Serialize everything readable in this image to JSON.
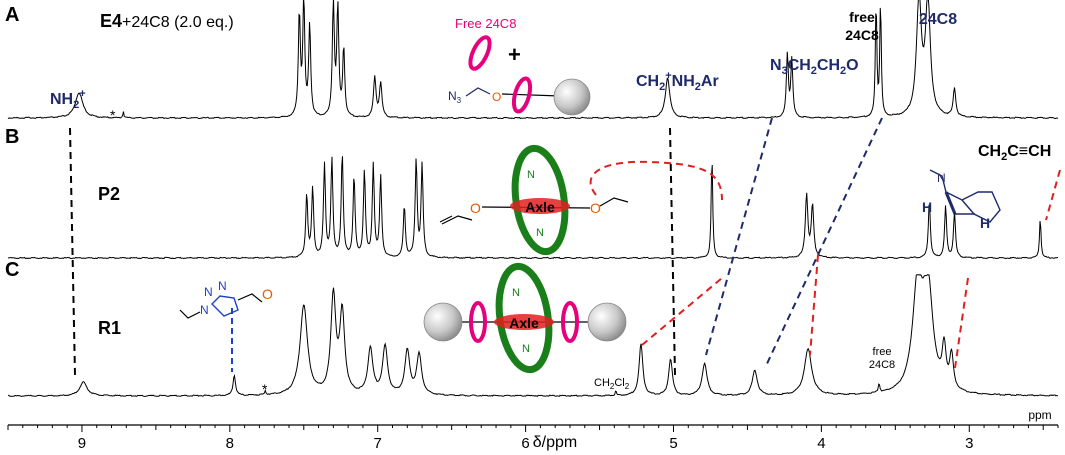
{
  "chart_data": {
    "type": "line",
    "x_unit": "ppm",
    "xlabel": "δ/ppm",
    "x_unit_label": "ppm",
    "xlim": [
      9.5,
      2.4
    ],
    "x_reversed": true,
    "x_ticks": [
      9,
      8,
      7,
      6,
      5,
      4,
      3
    ],
    "grid": false,
    "panels": [
      {
        "letter": "A",
        "label": "E4",
        "label_suffix": "+24C8 (2.0 eq.)",
        "peaks": [
          {
            "ppm": 9.02,
            "height": 0.22,
            "width": 0.03
          },
          {
            "ppm": 8.72,
            "height": 0.06,
            "width": 0.004
          },
          {
            "ppm": 7.53,
            "height": 0.9,
            "width": 0.008
          },
          {
            "ppm": 7.5,
            "height": 1.0,
            "width": 0.008
          },
          {
            "ppm": 7.46,
            "height": 0.8,
            "width": 0.008
          },
          {
            "ppm": 7.3,
            "height": 1.0,
            "width": 0.008
          },
          {
            "ppm": 7.27,
            "height": 0.95,
            "width": 0.008
          },
          {
            "ppm": 7.23,
            "height": 0.6,
            "width": 0.008
          },
          {
            "ppm": 7.02,
            "height": 0.35,
            "width": 0.01
          },
          {
            "ppm": 6.98,
            "height": 0.3,
            "width": 0.01
          },
          {
            "ppm": 5.04,
            "height": 0.35,
            "width": 0.018
          },
          {
            "ppm": 4.23,
            "height": 0.55,
            "width": 0.008
          },
          {
            "ppm": 4.2,
            "height": 0.5,
            "width": 0.008
          },
          {
            "ppm": 3.63,
            "height": 1.0,
            "width": 0.006
          },
          {
            "ppm": 3.6,
            "height": 1.0,
            "width": 0.006
          },
          {
            "ppm": 3.34,
            "height": 1.0,
            "width": 0.02
          },
          {
            "ppm": 3.28,
            "height": 1.0,
            "width": 0.02
          },
          {
            "ppm": 3.1,
            "height": 0.25,
            "width": 0.01
          }
        ]
      },
      {
        "letter": "B",
        "label": "P2",
        "label_suffix": "",
        "peaks": [
          {
            "ppm": 7.48,
            "height": 0.55,
            "width": 0.008
          },
          {
            "ppm": 7.44,
            "height": 0.6,
            "width": 0.008
          },
          {
            "ppm": 7.36,
            "height": 0.8,
            "width": 0.008
          },
          {
            "ppm": 7.31,
            "height": 0.85,
            "width": 0.008
          },
          {
            "ppm": 7.24,
            "height": 0.9,
            "width": 0.008
          },
          {
            "ppm": 7.16,
            "height": 0.7,
            "width": 0.008
          },
          {
            "ppm": 7.09,
            "height": 0.75,
            "width": 0.008
          },
          {
            "ppm": 7.03,
            "height": 0.8,
            "width": 0.008
          },
          {
            "ppm": 6.98,
            "height": 0.7,
            "width": 0.008
          },
          {
            "ppm": 6.82,
            "height": 0.45,
            "width": 0.008
          },
          {
            "ppm": 6.74,
            "height": 0.85,
            "width": 0.008
          },
          {
            "ppm": 6.7,
            "height": 0.8,
            "width": 0.008
          },
          {
            "ppm": 4.74,
            "height": 0.9,
            "width": 0.006
          },
          {
            "ppm": 4.1,
            "height": 0.55,
            "width": 0.01
          },
          {
            "ppm": 4.06,
            "height": 0.45,
            "width": 0.01
          },
          {
            "ppm": 3.27,
            "height": 0.5,
            "width": 0.008
          },
          {
            "ppm": 3.16,
            "height": 0.45,
            "width": 0.008
          },
          {
            "ppm": 3.1,
            "height": 0.4,
            "width": 0.008
          },
          {
            "ppm": 2.52,
            "height": 0.35,
            "width": 0.006
          }
        ]
      },
      {
        "letter": "C",
        "label": "R1",
        "label_suffix": "",
        "peaks": [
          {
            "ppm": 8.99,
            "height": 0.12,
            "width": 0.03
          },
          {
            "ppm": 7.97,
            "height": 0.18,
            "width": 0.01
          },
          {
            "ppm": 7.76,
            "height": 0.04,
            "width": 0.004
          },
          {
            "ppm": 7.5,
            "height": 0.78,
            "width": 0.03
          },
          {
            "ppm": 7.3,
            "height": 0.85,
            "width": 0.02
          },
          {
            "ppm": 7.24,
            "height": 0.7,
            "width": 0.02
          },
          {
            "ppm": 7.05,
            "height": 0.4,
            "width": 0.02
          },
          {
            "ppm": 6.95,
            "height": 0.42,
            "width": 0.02
          },
          {
            "ppm": 6.8,
            "height": 0.38,
            "width": 0.02
          },
          {
            "ppm": 6.72,
            "height": 0.35,
            "width": 0.02
          },
          {
            "ppm": 5.22,
            "height": 0.45,
            "width": 0.015
          },
          {
            "ppm": 5.02,
            "height": 0.32,
            "width": 0.015
          },
          {
            "ppm": 4.79,
            "height": 0.28,
            "width": 0.02
          },
          {
            "ppm": 4.45,
            "height": 0.22,
            "width": 0.02
          },
          {
            "ppm": 4.09,
            "height": 0.4,
            "width": 0.03
          },
          {
            "ppm": 3.61,
            "height": 0.08,
            "width": 0.006
          },
          {
            "ppm": 3.35,
            "height": 0.9,
            "width": 0.04
          },
          {
            "ppm": 3.28,
            "height": 0.9,
            "width": 0.04
          },
          {
            "ppm": 3.17,
            "height": 0.35,
            "width": 0.015
          },
          {
            "ppm": 3.12,
            "height": 0.3,
            "width": 0.015
          },
          {
            "ppm": 5.39,
            "height": 0.05,
            "width": 0.004
          }
        ]
      }
    ],
    "annotations": [
      {
        "text": "NH2+",
        "panel": "A"
      },
      {
        "text": "*",
        "panel": "A"
      },
      {
        "text": "CH2+NH2Ar",
        "panel": "A"
      },
      {
        "text": "N3CH2CH2O",
        "panel": "A"
      },
      {
        "text": "free 24C8",
        "panel": "A"
      },
      {
        "text": "24C8",
        "panel": "A"
      },
      {
        "text": "CH2C≡CH",
        "panel": "B"
      },
      {
        "text": "CH2Cl2",
        "panel": "C"
      },
      {
        "text": "free 24C8",
        "panel": "C"
      },
      {
        "text": "*",
        "panel": "C"
      }
    ]
  },
  "labels": {
    "panel_a": "A",
    "panel_b": "B",
    "panel_c": "C",
    "sample_a_bold": "E4",
    "sample_a_rest": "+24C8 (2.0 eq.)",
    "sample_b": "P2",
    "sample_c": "R1",
    "nh2_main": "NH",
    "nh2_sub": "2",
    "nh2_sup": "+",
    "star_a": "*",
    "star_c": "*",
    "ch2nh2_a": "CH",
    "ch2nh2_sub1": "2",
    "ch2nh2_sup": "+",
    "ch2nh2_b": "NH",
    "ch2nh2_sub2": "2",
    "ch2nh2_c": "Ar",
    "n3_a": "N",
    "n3_sub": "3",
    "n3_b": "CH",
    "n3_sub2": "2",
    "n3_c": "CH",
    "n3_sub3": "2",
    "n3_d": "O",
    "free_line1": "free",
    "free_line2": "24C8",
    "crown_label": "24C8",
    "propargyl_a": "CH",
    "propargyl_sub": "2",
    "propargyl_b": "C",
    "propargyl_triple": "≡",
    "propargyl_c": "CH",
    "ch2cl2_a": "CH",
    "ch2cl2_sub1": "2",
    "ch2cl2_b": "Cl",
    "ch2cl2_sub2": "2",
    "free_c_line1": "free",
    "free_c_line2": "24C8",
    "free_24c8_cartoon": "Free 24C8",
    "plus_sign": "+",
    "axle_b": "Axle",
    "axle_c": "Axle",
    "n3_cartoon": "N",
    "n3_cartoon_sub": "3",
    "o_a": "O",
    "o_b1": "O",
    "o_b2": "O",
    "n_b1": "N",
    "n_b2": "N",
    "n_c1": "N",
    "n_c2": "N",
    "n_struct": "N",
    "h_struct1": "H",
    "h_struct2": "H",
    "triazole_n1": "N",
    "triazole_n2": "N",
    "triazole_n3": "N",
    "triazole_o": "O"
  },
  "colors": {
    "spectrum": "#000000",
    "label_navy": "#1f2a6b",
    "ring_magenta": "#e6007e",
    "ring_green": "#1a7f1a",
    "oxygen_orange": "#e65c00",
    "dash_red": "#e02020",
    "dash_navy": "#1f2a6b",
    "dash_black": "#000000",
    "dash_blue": "#2040d0",
    "stopper_gray": "#bdbdbd"
  }
}
